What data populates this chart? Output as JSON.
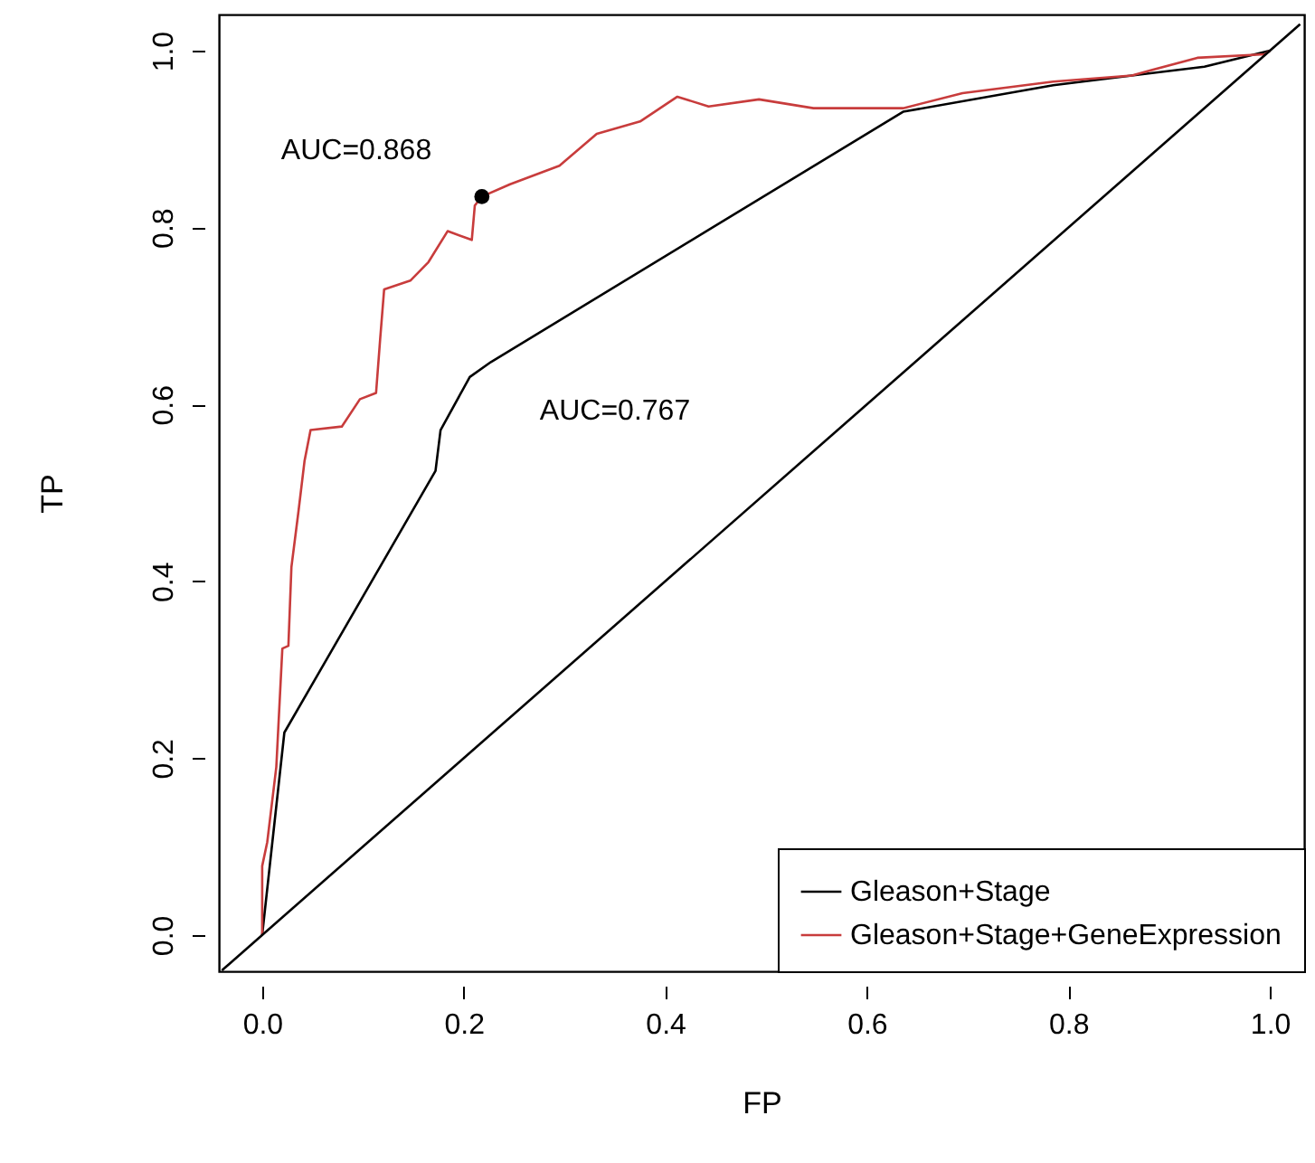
{
  "chart_data": {
    "type": "line",
    "xlabel": "FP",
    "ylabel": "TP",
    "xlim": [
      -0.043,
      1.034
    ],
    "ylim": [
      -0.041,
      1.041
    ],
    "xticks": [
      {
        "value": 0,
        "label": "0.0"
      },
      0.2,
      0.4,
      0.6,
      0.8,
      {
        "value": 1,
        "label": "1.0"
      }
    ],
    "yticks": [
      {
        "value": 0,
        "label": "0.0"
      },
      0.2,
      0.4,
      0.6,
      0.8,
      {
        "value": 1,
        "label": "1.0"
      }
    ],
    "grid": false,
    "legend": "bottom right",
    "marker": "none",
    "line_style": "solid",
    "series": [
      {
        "name": "Gleason+Stage",
        "color": "#000000",
        "x": [
          0,
          0.022,
          0.172,
          0.177,
          0.206,
          0.227,
          0.636,
          0.785,
          0.935,
          1
        ],
        "values": [
          0,
          0.229,
          0.525,
          0.571,
          0.631,
          0.648,
          0.931,
          0.961,
          0.982,
          1
        ]
      },
      {
        "name": "Gleason+Stage+GeneExpression",
        "color": "#c83c3c",
        "x": [
          0,
          0,
          0.005,
          0.014,
          0.02,
          0.026,
          0.029,
          0.036,
          0.042,
          0.048,
          0.079,
          0.097,
          0.113,
          0.117,
          0.121,
          0.147,
          0.165,
          0.184,
          0.208,
          0.211,
          0.218,
          0.246,
          0.295,
          0.332,
          0.375,
          0.412,
          0.443,
          0.493,
          0.547,
          0.636,
          0.695,
          0.785,
          0.863,
          0.928,
          0.995,
          1
        ],
        "values": [
          0,
          0.078,
          0.105,
          0.19,
          0.324,
          0.327,
          0.416,
          0.479,
          0.536,
          0.571,
          0.575,
          0.606,
          0.613,
          0.673,
          0.73,
          0.74,
          0.761,
          0.796,
          0.786,
          0.825,
          0.835,
          0.849,
          0.87,
          0.906,
          0.92,
          0.948,
          0.937,
          0.945,
          0.935,
          0.935,
          0.952,
          0.965,
          0.972,
          0.992,
          0.996,
          1
        ]
      },
      {
        "type": "line",
        "color": "#000000",
        "x": [
          -0.04,
          1.03
        ],
        "values": [
          -0.04,
          1.03
        ]
      },
      {
        "type": "scatter",
        "color": "#000000",
        "x": [
          0.218
        ],
        "values": [
          0.835
        ],
        "marker": "circle"
      }
    ],
    "annotations": [
      "AUC=0.868",
      "AUC=0.767"
    ]
  }
}
